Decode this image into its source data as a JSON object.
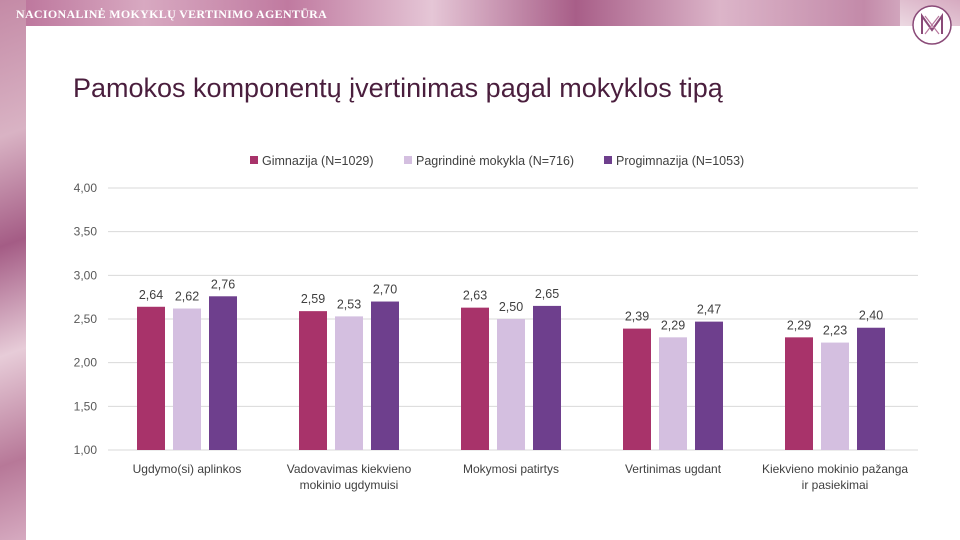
{
  "header": {
    "agency_name": "NACIONALINĖ MOKYKLŲ VERTINIMO AGENTŪRA",
    "logo_icon": "nmva-logo-icon"
  },
  "slide": {
    "title": "Pamokos komponentų įvertinimas pagal mokyklos tipą"
  },
  "chart_data": {
    "type": "bar",
    "title": "",
    "xlabel": "",
    "ylabel": "",
    "ylim": [
      1.0,
      4.0
    ],
    "yticks": [
      "1,00",
      "1,50",
      "2,00",
      "2,50",
      "3,00",
      "3,50",
      "4,00"
    ],
    "ytick_values": [
      1.0,
      1.5,
      2.0,
      2.5,
      3.0,
      3.5,
      4.0
    ],
    "grid": true,
    "legend_position": "top",
    "categories": [
      [
        "Ugdymo(si) aplinkos"
      ],
      [
        "Vadovavimas kiekvieno",
        "mokinio ugdymuisi"
      ],
      [
        "Mokymosi patirtys"
      ],
      [
        "Vertinimas ugdant"
      ],
      [
        "Kiekvieno mokinio pažanga",
        "ir pasiekimai"
      ]
    ],
    "series": [
      {
        "name": "Gimnazija (N=1029)",
        "color": "#a8336a",
        "values": [
          2.64,
          2.59,
          2.63,
          2.39,
          2.29
        ],
        "labels": [
          "2,64",
          "2,59",
          "2,63",
          "2,39",
          "2,29"
        ]
      },
      {
        "name": "Pagrindinė mokykla (N=716)",
        "color": "#d4bfe0",
        "values": [
          2.62,
          2.53,
          2.5,
          2.29,
          2.23
        ],
        "labels": [
          "2,62",
          "2,53",
          "2,50",
          "2,29",
          "2,23"
        ]
      },
      {
        "name": "Progimnazija (N=1053)",
        "color": "#6e3f8d",
        "values": [
          2.76,
          2.7,
          2.65,
          2.47,
          2.4
        ],
        "labels": [
          "2,76",
          "2,70",
          "2,65",
          "2,47",
          "2,40"
        ]
      }
    ]
  }
}
